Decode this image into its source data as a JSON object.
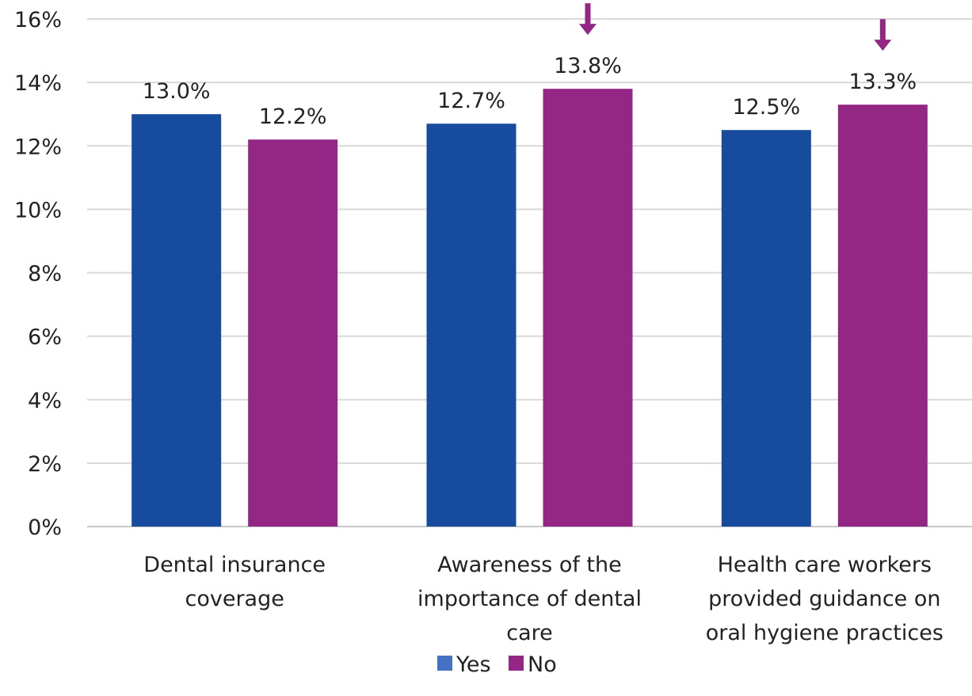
{
  "chart_data": {
    "type": "bar",
    "categories": [
      [
        "Dental insurance",
        "coverage"
      ],
      [
        "Awareness of the",
        "importance of dental",
        "care"
      ],
      [
        "Health care workers",
        "provided guidance on",
        "oral hygiene practices"
      ]
    ],
    "series": [
      {
        "name": "Yes",
        "color": "#164B9E",
        "values": [
          13.0,
          12.7,
          12.5
        ],
        "labels": [
          "13.0%",
          "12.7%",
          "12.5%"
        ]
      },
      {
        "name": "No",
        "color": "#942786",
        "values": [
          12.2,
          13.8,
          13.3
        ],
        "labels": [
          "12.2%",
          "13.8%",
          "13.3%"
        ]
      }
    ],
    "yticks": [
      "0%",
      "2%",
      "4%",
      "6%",
      "8%",
      "10%",
      "12%",
      "14%",
      "16%"
    ],
    "ylim": [
      0,
      16
    ],
    "grid": true,
    "legend_position": "bottom",
    "legend_swatch_color_yes": "#4472C4",
    "annotations": [
      {
        "type": "arrow-down",
        "series": "No",
        "category_index": 1,
        "color": "#942786"
      },
      {
        "type": "arrow-down",
        "series": "No",
        "category_index": 2,
        "color": "#942786"
      }
    ]
  }
}
